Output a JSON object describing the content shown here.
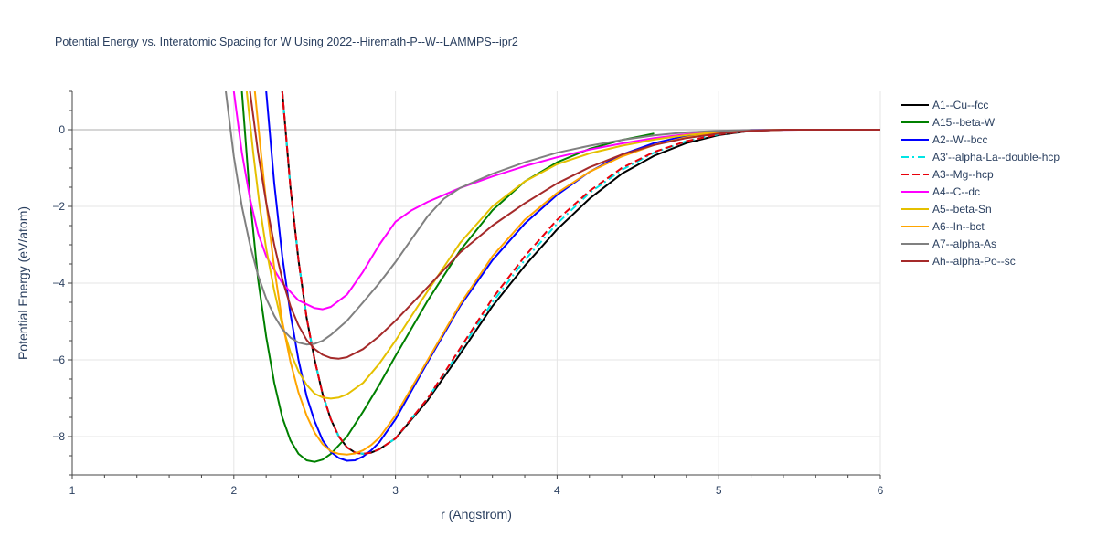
{
  "chart_data": {
    "type": "line",
    "title": "Potential Energy vs. Interatomic Spacing for W Using 2022--Hiremath-P--W--LAMMPS--ipr2",
    "xlabel": "r (Angstrom)",
    "ylabel": "Potential Energy (eV/atom)",
    "xlim": [
      1,
      6
    ],
    "ylim": [
      -9,
      1
    ],
    "xticks": [
      1,
      2,
      3,
      4,
      5,
      6
    ],
    "yticks": [
      -8,
      -6,
      -4,
      -2,
      0
    ],
    "xtick_labels": [
      "1",
      "2",
      "3",
      "4",
      "5",
      "6"
    ],
    "ytick_labels": [
      "−8",
      "−6",
      "−4",
      "−2",
      "0"
    ],
    "grid": true,
    "legend_position": "right",
    "series": [
      {
        "name": "A1--Cu--fcc",
        "color": "#000000",
        "dash": "solid",
        "x": [
          2.3,
          2.35,
          2.4,
          2.45,
          2.5,
          2.55,
          2.6,
          2.65,
          2.7,
          2.75,
          2.8,
          2.85,
          2.9,
          3.0,
          3.2,
          3.4,
          3.6,
          3.8,
          4.0,
          4.2,
          4.4,
          4.6,
          4.8,
          5.0,
          5.2,
          5.4,
          6.0
        ],
        "y": [
          1.0,
          -1.5,
          -3.4,
          -4.9,
          -6.0,
          -6.9,
          -7.55,
          -8.0,
          -8.28,
          -8.42,
          -8.45,
          -8.42,
          -8.33,
          -8.05,
          -7.05,
          -5.85,
          -4.6,
          -3.55,
          -2.6,
          -1.8,
          -1.15,
          -0.68,
          -0.35,
          -0.14,
          -0.03,
          0.0,
          0.0
        ]
      },
      {
        "name": "A15--beta-W",
        "color": "#008000",
        "dash": "solid",
        "x": [
          2.05,
          2.1,
          2.15,
          2.2,
          2.25,
          2.3,
          2.35,
          2.4,
          2.45,
          2.5,
          2.55,
          2.6,
          2.7,
          2.8,
          2.9,
          3.0,
          3.2,
          3.4,
          3.6,
          3.8,
          4.0,
          4.2,
          4.4,
          4.6
        ],
        "y": [
          1.0,
          -1.8,
          -3.9,
          -5.4,
          -6.6,
          -7.5,
          -8.1,
          -8.45,
          -8.62,
          -8.66,
          -8.6,
          -8.45,
          -8.0,
          -7.35,
          -6.65,
          -5.9,
          -4.45,
          -3.15,
          -2.1,
          -1.35,
          -0.85,
          -0.5,
          -0.27,
          -0.1
        ]
      },
      {
        "name": "A2--W--bcc",
        "color": "#0000ff",
        "dash": "solid",
        "x": [
          2.2,
          2.25,
          2.3,
          2.35,
          2.4,
          2.45,
          2.5,
          2.55,
          2.6,
          2.65,
          2.7,
          2.75,
          2.8,
          2.85,
          2.9,
          3.0,
          3.2,
          3.4,
          3.6,
          3.8,
          4.0,
          4.2,
          4.4,
          4.6,
          4.8,
          5.0,
          5.2,
          5.4,
          6.0
        ],
        "y": [
          1.0,
          -1.4,
          -3.3,
          -4.8,
          -6.0,
          -6.95,
          -7.6,
          -8.1,
          -8.4,
          -8.56,
          -8.63,
          -8.62,
          -8.52,
          -8.36,
          -8.15,
          -7.55,
          -6.05,
          -4.6,
          -3.4,
          -2.45,
          -1.7,
          -1.1,
          -0.65,
          -0.35,
          -0.16,
          -0.06,
          -0.01,
          0.0,
          0.0
        ]
      },
      {
        "name": "A3'--alpha-La--double-hcp",
        "color": "#00e5e5",
        "dash": "dashdot",
        "x": [
          2.3,
          2.35,
          2.4,
          2.45,
          2.5,
          2.55,
          2.6,
          2.65,
          2.7,
          2.75,
          2.8,
          2.85,
          2.9,
          3.0,
          3.2,
          3.4,
          3.6,
          3.8,
          4.0,
          4.2,
          4.4,
          4.6,
          4.8,
          5.0,
          5.2,
          5.4,
          6.0
        ],
        "y": [
          1.0,
          -1.5,
          -3.4,
          -4.9,
          -6.0,
          -6.9,
          -7.55,
          -8.0,
          -8.28,
          -8.42,
          -8.45,
          -8.42,
          -8.33,
          -8.05,
          -7.0,
          -5.75,
          -4.5,
          -3.4,
          -2.45,
          -1.65,
          -1.05,
          -0.6,
          -0.3,
          -0.12,
          -0.03,
          0.0,
          0.0
        ]
      },
      {
        "name": "A3--Mg--hcp",
        "color": "#e8000b",
        "dash": "dash",
        "x": [
          2.3,
          2.35,
          2.4,
          2.45,
          2.5,
          2.55,
          2.6,
          2.65,
          2.7,
          2.75,
          2.8,
          2.85,
          2.9,
          3.0,
          3.2,
          3.4,
          3.6,
          3.8,
          4.0,
          4.2,
          4.4,
          4.6,
          4.8,
          5.0,
          5.2,
          5.4,
          6.0
        ],
        "y": [
          1.0,
          -1.5,
          -3.4,
          -4.9,
          -6.0,
          -6.9,
          -7.55,
          -8.0,
          -8.28,
          -8.42,
          -8.45,
          -8.42,
          -8.33,
          -8.05,
          -7.0,
          -5.7,
          -4.4,
          -3.3,
          -2.35,
          -1.6,
          -1.0,
          -0.58,
          -0.3,
          -0.12,
          -0.03,
          0.0,
          0.0
        ]
      },
      {
        "name": "A4--C--dc",
        "color": "#ff00ff",
        "dash": "solid",
        "x": [
          2.0,
          2.05,
          2.1,
          2.15,
          2.2,
          2.3,
          2.4,
          2.5,
          2.55,
          2.6,
          2.7,
          2.8,
          2.9,
          3.0,
          3.1,
          3.2,
          3.3,
          3.4,
          3.6,
          3.8,
          4.0,
          4.2,
          4.4,
          4.6,
          4.8,
          5.0,
          5.2,
          5.5,
          6.0
        ],
        "y": [
          1.0,
          -0.6,
          -1.8,
          -2.7,
          -3.3,
          -4.0,
          -4.45,
          -4.65,
          -4.68,
          -4.62,
          -4.3,
          -3.7,
          -3.0,
          -2.4,
          -2.1,
          -1.88,
          -1.7,
          -1.52,
          -1.22,
          -0.95,
          -0.72,
          -0.52,
          -0.36,
          -0.22,
          -0.12,
          -0.05,
          -0.01,
          0.0,
          0.0
        ]
      },
      {
        "name": "A5--beta-Sn",
        "color": "#e5c000",
        "dash": "solid",
        "x": [
          2.08,
          2.12,
          2.16,
          2.2,
          2.25,
          2.3,
          2.35,
          2.4,
          2.45,
          2.5,
          2.55,
          2.6,
          2.65,
          2.7,
          2.8,
          2.9,
          3.0,
          3.2,
          3.4,
          3.6,
          3.8,
          4.0,
          4.2,
          4.4,
          4.6,
          4.8,
          5.0,
          5.2,
          5.4,
          6.0
        ],
        "y": [
          1.0,
          -0.6,
          -2.0,
          -3.1,
          -4.2,
          -5.1,
          -5.8,
          -6.3,
          -6.65,
          -6.88,
          -6.98,
          -7.01,
          -6.98,
          -6.9,
          -6.6,
          -6.1,
          -5.5,
          -4.2,
          -2.95,
          -2.0,
          -1.35,
          -0.9,
          -0.62,
          -0.42,
          -0.26,
          -0.14,
          -0.06,
          -0.02,
          0.0,
          0.0
        ]
      },
      {
        "name": "A6--In--bct",
        "color": "#ffa500",
        "dash": "solid",
        "x": [
          2.13,
          2.17,
          2.2,
          2.25,
          2.3,
          2.35,
          2.4,
          2.45,
          2.5,
          2.55,
          2.6,
          2.65,
          2.7,
          2.75,
          2.8,
          2.85,
          2.9,
          3.0,
          3.2,
          3.4,
          3.6,
          3.8,
          4.0,
          4.2,
          4.4,
          4.6,
          4.8,
          5.0,
          5.2,
          5.4,
          6.0
        ],
        "y": [
          1.0,
          -0.7,
          -1.9,
          -3.6,
          -5.0,
          -6.05,
          -6.85,
          -7.45,
          -7.9,
          -8.2,
          -8.38,
          -8.45,
          -8.47,
          -8.44,
          -8.36,
          -8.22,
          -8.03,
          -7.45,
          -6.0,
          -4.55,
          -3.3,
          -2.35,
          -1.65,
          -1.1,
          -0.7,
          -0.4,
          -0.2,
          -0.08,
          -0.02,
          0.0,
          0.0
        ]
      },
      {
        "name": "A7--alpha-As",
        "color": "#808080",
        "dash": "solid",
        "x": [
          1.95,
          2.0,
          2.05,
          2.1,
          2.15,
          2.2,
          2.25,
          2.3,
          2.35,
          2.4,
          2.45,
          2.5,
          2.55,
          2.6,
          2.7,
          2.8,
          2.9,
          3.0,
          3.1,
          3.2,
          3.3,
          3.4,
          3.6,
          3.8,
          4.0,
          4.2,
          4.4,
          4.6,
          4.8,
          5.0,
          5.2,
          5.5,
          6.0
        ],
        "y": [
          1.0,
          -0.7,
          -2.0,
          -3.0,
          -3.8,
          -4.4,
          -4.85,
          -5.2,
          -5.42,
          -5.55,
          -5.6,
          -5.58,
          -5.5,
          -5.35,
          -4.98,
          -4.5,
          -4.0,
          -3.45,
          -2.85,
          -2.25,
          -1.8,
          -1.52,
          -1.15,
          -0.85,
          -0.6,
          -0.42,
          -0.27,
          -0.15,
          -0.07,
          -0.03,
          -0.01,
          0.0,
          0.0
        ]
      },
      {
        "name": "Ah--alpha-Po--sc",
        "color": "#a52a2a",
        "dash": "solid",
        "x": [
          2.1,
          2.15,
          2.2,
          2.25,
          2.3,
          2.35,
          2.4,
          2.45,
          2.5,
          2.55,
          2.6,
          2.65,
          2.7,
          2.8,
          2.9,
          3.0,
          3.2,
          3.4,
          3.6,
          3.8,
          4.0,
          4.2,
          4.4,
          4.6,
          4.8,
          5.0,
          5.2,
          5.4,
          6.0
        ],
        "y": [
          1.0,
          -0.6,
          -1.9,
          -3.0,
          -3.9,
          -4.6,
          -5.1,
          -5.48,
          -5.72,
          -5.87,
          -5.95,
          -5.97,
          -5.93,
          -5.72,
          -5.38,
          -4.98,
          -4.1,
          -3.2,
          -2.5,
          -1.92,
          -1.4,
          -0.98,
          -0.65,
          -0.4,
          -0.22,
          -0.1,
          -0.03,
          0.0,
          0.0
        ]
      }
    ]
  }
}
